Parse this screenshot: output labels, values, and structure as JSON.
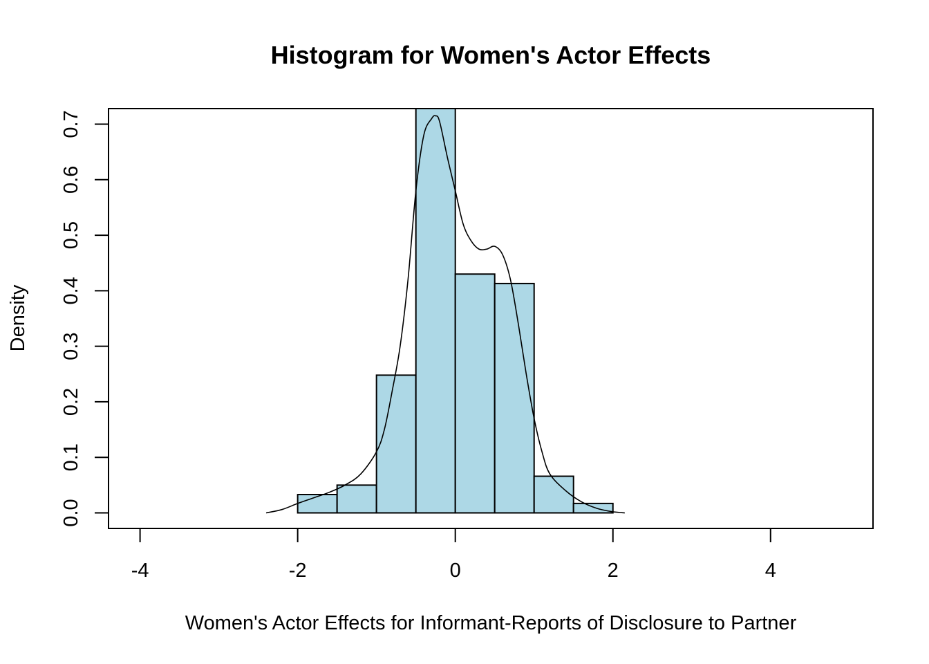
{
  "chart_data": {
    "type": "bar",
    "subtype": "histogram",
    "title": "Histogram for Women's Actor Effects",
    "xlabel": "Women's Actor Effects for Informant-Reports of Disclosure to Partner",
    "ylabel": "Density",
    "xlim": [
      -4.4,
      5.3
    ],
    "ylim": [
      -0.028,
      0.728
    ],
    "x_ticks": [
      -4,
      -2,
      0,
      2,
      4
    ],
    "x_tick_labels": [
      "-4",
      "-2",
      "0",
      "2",
      "4"
    ],
    "y_ticks": [
      0.0,
      0.1,
      0.2,
      0.3,
      0.4,
      0.5,
      0.6,
      0.7
    ],
    "y_tick_labels": [
      "0.0",
      "0.1",
      "0.2",
      "0.3",
      "0.4",
      "0.5",
      "0.6",
      "0.7"
    ],
    "bar_color": "#add8e6",
    "bins": [
      {
        "x0": -2.0,
        "x1": -1.5,
        "density": 0.033
      },
      {
        "x0": -1.5,
        "x1": -1.0,
        "density": 0.05
      },
      {
        "x0": -1.0,
        "x1": -0.5,
        "density": 0.248
      },
      {
        "x0": -0.5,
        "x1": 0.0,
        "density": 0.728
      },
      {
        "x0": 0.0,
        "x1": 0.5,
        "density": 0.43
      },
      {
        "x0": 0.5,
        "x1": 1.0,
        "density": 0.413
      },
      {
        "x0": 1.0,
        "x1": 1.5,
        "density": 0.066
      },
      {
        "x0": 1.5,
        "x1": 2.0,
        "density": 0.017
      }
    ],
    "density_curve": {
      "x": [
        -2.4,
        -2.2,
        -2.0,
        -1.8,
        -1.6,
        -1.4,
        -1.2,
        -1.0,
        -0.9,
        -0.8,
        -0.7,
        -0.6,
        -0.5,
        -0.4,
        -0.3,
        -0.25,
        -0.2,
        -0.1,
        0.0,
        0.1,
        0.2,
        0.3,
        0.4,
        0.5,
        0.6,
        0.7,
        0.8,
        0.9,
        1.0,
        1.1,
        1.2,
        1.4,
        1.6,
        1.8,
        2.0,
        2.15
      ],
      "y": [
        0.0,
        0.006,
        0.017,
        0.027,
        0.037,
        0.05,
        0.07,
        0.11,
        0.15,
        0.22,
        0.3,
        0.42,
        0.58,
        0.68,
        0.71,
        0.715,
        0.705,
        0.64,
        0.58,
        0.52,
        0.49,
        0.475,
        0.475,
        0.48,
        0.465,
        0.42,
        0.34,
        0.25,
        0.17,
        0.11,
        0.07,
        0.04,
        0.02,
        0.008,
        0.002,
        0.0
      ]
    },
    "grid": false,
    "legend": "none"
  }
}
